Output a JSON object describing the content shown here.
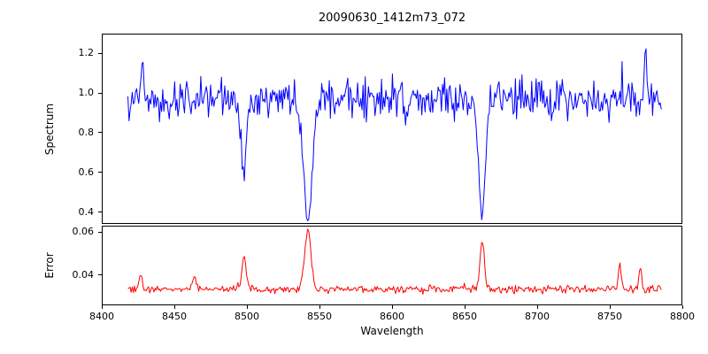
{
  "chart_data": [
    {
      "type": "line",
      "series_name": "spectrum",
      "title": "20090630_1412m73_072",
      "ylabel": "Spectrum",
      "color": "#0000ff",
      "xlim": [
        8400,
        8800
      ],
      "ylim": [
        0.34,
        1.3
      ],
      "grid": false,
      "legend": "none",
      "yticks": [
        {
          "v": 0.4,
          "label": "0.4"
        },
        {
          "v": 0.6,
          "label": "0.6"
        },
        {
          "v": 0.8,
          "label": "0.8"
        },
        {
          "v": 1.0,
          "label": "1.0"
        },
        {
          "v": 1.2,
          "label": "1.2"
        }
      ],
      "x_start": 8418,
      "x_end": 8786,
      "x_step": 0.75,
      "model": {
        "baseline": 0.97,
        "noise_sigma": 0.05,
        "absorption_lines": [
          {
            "center": 8498,
            "min_value": 0.58,
            "sigma": 1.8
          },
          {
            "center": 8542,
            "min_value": 0.345,
            "sigma": 3.0
          },
          {
            "center": 8662,
            "min_value": 0.385,
            "sigma": 2.2
          }
        ],
        "emission_spikes": [
          {
            "center": 8428,
            "peak_value": 1.17,
            "sigma": 0.8
          },
          {
            "center": 8775,
            "peak_value": 1.24,
            "sigma": 0.8
          }
        ]
      }
    },
    {
      "type": "line",
      "series_name": "error",
      "ylabel": "Error",
      "xlabel": "Wavelength",
      "color": "#ff0000",
      "xlim": [
        8400,
        8800
      ],
      "ylim": [
        0.026,
        0.063
      ],
      "grid": false,
      "legend": "none",
      "yticks": [
        {
          "v": 0.04,
          "label": "0.04"
        },
        {
          "v": 0.06,
          "label": "0.06"
        }
      ],
      "xticks": [
        {
          "v": 8400,
          "label": "8400"
        },
        {
          "v": 8450,
          "label": "8450"
        },
        {
          "v": 8500,
          "label": "8500"
        },
        {
          "v": 8550,
          "label": "8550"
        },
        {
          "v": 8600,
          "label": "8600"
        },
        {
          "v": 8650,
          "label": "8650"
        },
        {
          "v": 8700,
          "label": "8700"
        },
        {
          "v": 8750,
          "label": "8750"
        },
        {
          "v": 8800,
          "label": "8800"
        }
      ],
      "model": {
        "baseline": 0.0335,
        "noise_sigma": 0.0009,
        "absorption_lines": [],
        "emission_spikes": [
          {
            "center": 8498,
            "peak_value": 0.0485,
            "sigma": 1.5
          },
          {
            "center": 8542,
            "peak_value": 0.0605,
            "sigma": 2.2
          },
          {
            "center": 8662,
            "peak_value": 0.055,
            "sigma": 1.5
          },
          {
            "center": 8427,
            "peak_value": 0.04,
            "sigma": 1.0
          },
          {
            "center": 8464,
            "peak_value": 0.04,
            "sigma": 1.2
          },
          {
            "center": 8757,
            "peak_value": 0.0455,
            "sigma": 1.0
          },
          {
            "center": 8771,
            "peak_value": 0.044,
            "sigma": 1.0
          }
        ]
      }
    }
  ]
}
